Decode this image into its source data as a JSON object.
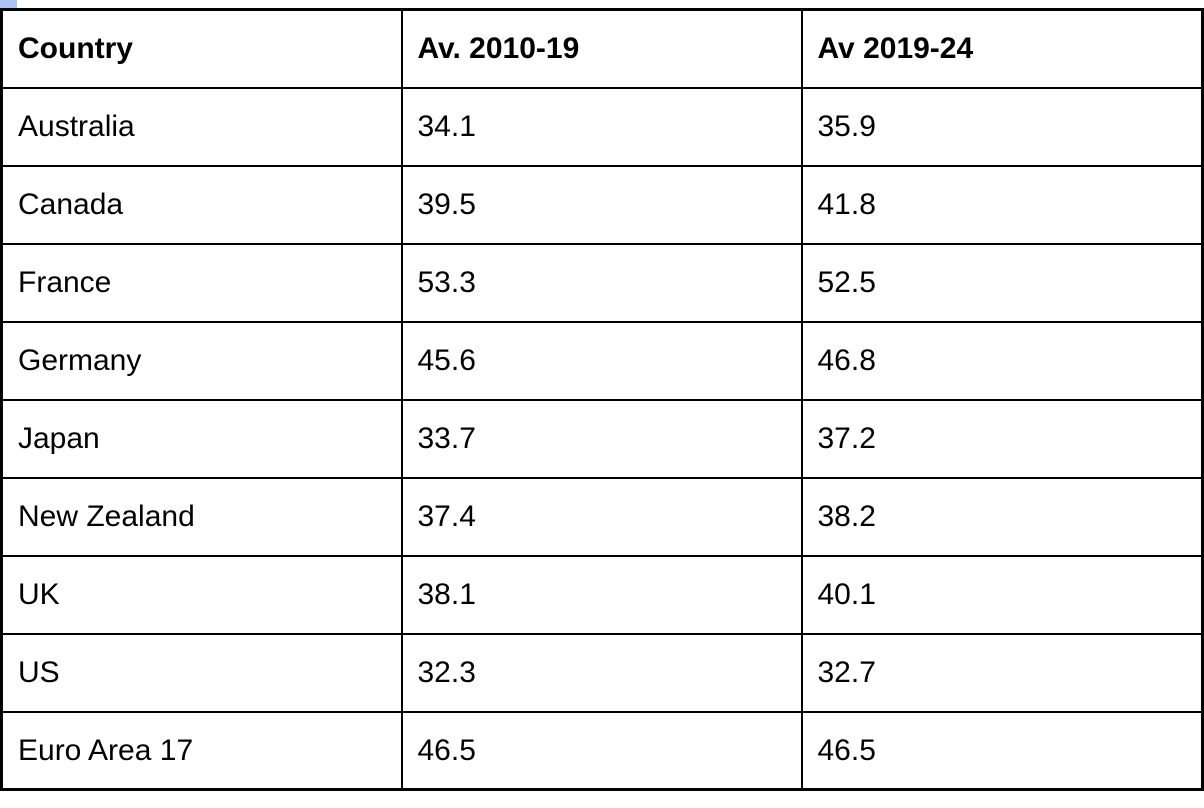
{
  "page": {
    "background_color": "#ffffff",
    "accent_square_color": "#a9c5f1",
    "border_color": "#000000"
  },
  "table": {
    "headers": {
      "country": "Country",
      "avg_2010_19": "Av. 2010-19",
      "avg_2019_24": "Av 2019-24"
    },
    "rows": [
      {
        "country": "Australia",
        "avg_2010_19": "34.1",
        "avg_2019_24": "35.9"
      },
      {
        "country": "Canada",
        "avg_2010_19": "39.5",
        "avg_2019_24": "41.8"
      },
      {
        "country": "France",
        "avg_2010_19": "53.3",
        "avg_2019_24": "52.5"
      },
      {
        "country": "Germany",
        "avg_2010_19": "45.6",
        "avg_2019_24": "46.8"
      },
      {
        "country": "Japan",
        "avg_2010_19": "33.7",
        "avg_2019_24": "37.2"
      },
      {
        "country": "New Zealand",
        "avg_2010_19": "37.4",
        "avg_2019_24": "38.2"
      },
      {
        "country": "UK",
        "avg_2010_19": "38.1",
        "avg_2019_24": "40.1"
      },
      {
        "country": "US",
        "avg_2010_19": "32.3",
        "avg_2019_24": "32.7"
      },
      {
        "country": "Euro Area 17",
        "avg_2010_19": "46.5",
        "avg_2019_24": "46.5"
      }
    ]
  },
  "chart_data": {
    "type": "table",
    "title": "",
    "columns": [
      "Country",
      "Av. 2010-19",
      "Av 2019-24"
    ],
    "categories": [
      "Australia",
      "Canada",
      "France",
      "Germany",
      "Japan",
      "New Zealand",
      "UK",
      "US",
      "Euro Area 17"
    ],
    "series": [
      {
        "name": "Av. 2010-19",
        "values": [
          34.1,
          39.5,
          53.3,
          45.6,
          33.7,
          37.4,
          38.1,
          32.3,
          46.5
        ]
      },
      {
        "name": "Av 2019-24",
        "values": [
          35.9,
          41.8,
          52.5,
          46.8,
          37.2,
          38.2,
          40.1,
          32.7,
          46.5
        ]
      }
    ],
    "layout": {
      "grid": true,
      "header_bold": true,
      "alignment": "left"
    }
  }
}
